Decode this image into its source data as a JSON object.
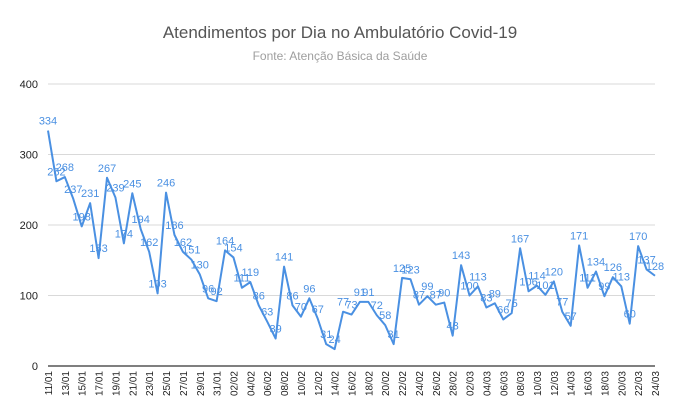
{
  "chart_data": {
    "type": "line",
    "title": "Atendimentos por Dia no Ambulatório Covid-19",
    "subtitle": "Fonte: Atenção Básica da Saúde",
    "xlabel": "",
    "ylabel": "",
    "ylim": [
      0,
      400
    ],
    "yticks": [
      0,
      100,
      200,
      300,
      400
    ],
    "grid": true,
    "legend": "none",
    "line_color": "#4a90e2",
    "x_tick_labels": [
      "11/01",
      "13/01",
      "15/01",
      "17/01",
      "19/01",
      "21/01",
      "23/01",
      "25/01",
      "27/01",
      "29/01",
      "31/01",
      "02/02",
      "04/02",
      "06/02",
      "08/02",
      "10/02",
      "12/02",
      "14/02",
      "16/02",
      "18/02",
      "20/02",
      "22/02",
      "24/02",
      "26/02",
      "28/02",
      "02/03",
      "04/03",
      "06/03",
      "08/03",
      "10/03",
      "12/03",
      "14/03",
      "16/03",
      "18/03",
      "20/03",
      "22/03",
      "24/03"
    ],
    "series": [
      {
        "values": [
          334,
          262,
          268,
          237,
          198,
          231,
          153,
          267,
          239,
          174,
          245,
          194,
          162,
          103,
          246,
          186,
          162,
          151,
          130,
          96,
          92,
          164,
          154,
          111,
          119,
          86,
          63,
          39,
          141,
          86,
          70,
          96,
          67,
          31,
          24,
          77,
          73,
          91,
          91,
          72,
          58,
          31,
          125,
          123,
          87,
          99,
          87,
          90,
          43,
          143,
          100,
          113,
          83,
          89,
          66,
          75,
          167,
          106,
          114,
          101,
          120,
          77,
          57,
          171,
          111,
          134,
          99,
          126,
          113,
          60,
          170,
          137,
          128
        ]
      }
    ]
  }
}
